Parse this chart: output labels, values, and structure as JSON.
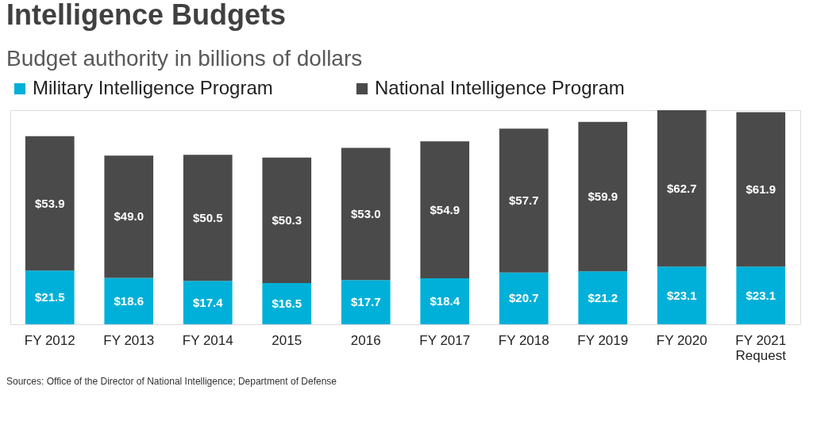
{
  "chart_data": {
    "type": "bar",
    "title": "Intelligence Budgets",
    "subtitle": "Budget authority in billions of dollars",
    "categories": [
      "FY 2012",
      "FY 2013",
      "FY 2014",
      "2015",
      "2016",
      "FY 2017",
      "FY 2018",
      "FY 2019",
      "FY 2020",
      "FY 2021 Request"
    ],
    "stacked": true,
    "legend": "top",
    "series": [
      {
        "name": "Military Intelligence Program",
        "color": "#00b0d8",
        "values": [
          21.5,
          18.6,
          17.4,
          16.5,
          17.7,
          18.4,
          20.7,
          21.2,
          23.1,
          23.1
        ],
        "value_labels": [
          "$21.5",
          "$18.6",
          "$17.4",
          "$16.5",
          "$17.7",
          "$18.4",
          "$20.7",
          "$21.2",
          "$23.1",
          "$23.1"
        ]
      },
      {
        "name": "National Intelligence Program",
        "color": "#4a4a4a",
        "values": [
          53.9,
          49.0,
          50.5,
          50.3,
          53.0,
          54.9,
          57.7,
          59.9,
          62.7,
          61.9
        ],
        "value_labels": [
          "$53.9",
          "$49.0",
          "$50.5",
          "$50.3",
          "$53.0",
          "$54.9",
          "$57.7",
          "$59.9",
          "$62.7",
          "$61.9"
        ]
      }
    ],
    "annotations": [
      "Sources: Office of the Director of National Intelligence; Department of Defense"
    ]
  }
}
